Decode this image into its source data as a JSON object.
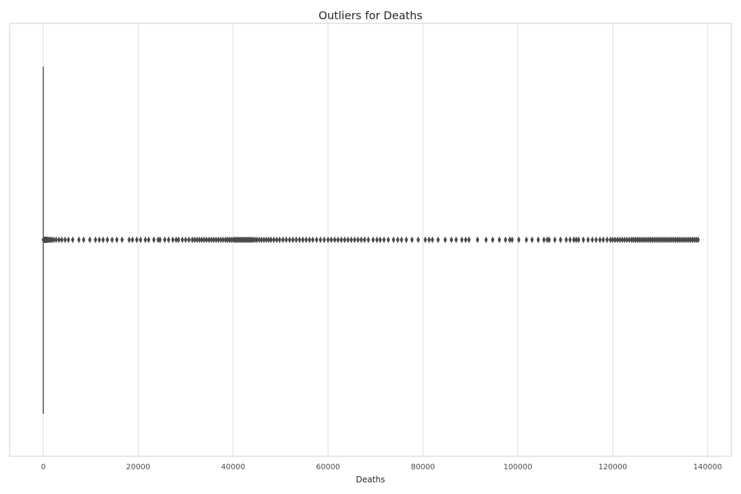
{
  "chart_data": {
    "type": "box",
    "orientation": "horizontal",
    "title": "Outliers for Deaths",
    "xlabel": "Deaths",
    "ylabel": "",
    "xlim": [
      -7100,
      145000
    ],
    "xticks": [
      0,
      20000,
      40000,
      60000,
      80000,
      100000,
      120000,
      140000
    ],
    "xtick_labels": [
      "0",
      "20000",
      "40000",
      "60000",
      "80000",
      "100000",
      "120000",
      "140000"
    ],
    "grid": "vertical",
    "legend": "none",
    "box": {
      "min": 0,
      "q1": 0,
      "median": 0,
      "q3": 0,
      "whisker_high": 0
    },
    "outlier_marker": "diamond",
    "outliers": [
      30,
      60,
      90,
      130,
      180,
      230,
      290,
      360,
      440,
      530,
      630,
      740,
      860,
      990,
      1200,
      1500,
      1800,
      2200,
      2700,
      3300,
      3900,
      4600,
      5300,
      6200,
      7500,
      8500,
      9800,
      11000,
      11800,
      12600,
      13500,
      14500,
      15500,
      16600,
      18100,
      18800,
      19700,
      20500,
      21500,
      22200,
      23300,
      24200,
      24600,
      25600,
      26400,
      27300,
      28000,
      28500,
      29300,
      30000,
      30700,
      31400,
      31900,
      32400,
      32900,
      33400,
      33900,
      34400,
      34900,
      35400,
      35900,
      36400,
      36900,
      37400,
      37900,
      38400,
      38800,
      39200,
      39600,
      40000,
      40300,
      40600,
      40900,
      41200,
      41500,
      41800,
      42100,
      42400,
      42700,
      43000,
      43300,
      43600,
      43900,
      44200,
      44600,
      45000,
      45500,
      46000,
      46500,
      47000,
      47500,
      48000,
      48600,
      49200,
      49800,
      50500,
      51200,
      51900,
      52600,
      53300,
      54000,
      54700,
      55400,
      56100,
      56800,
      57600,
      58400,
      59200,
      60000,
      60700,
      61400,
      62100,
      62800,
      63500,
      64200,
      64900,
      65600,
      66300,
      67000,
      67700,
      68500,
      69500,
      70300,
      71000,
      71800,
      72700,
      73800,
      74700,
      75500,
      76500,
      77700,
      79000,
      80500,
      81300,
      82000,
      83200,
      84700,
      86000,
      87000,
      88200,
      89000,
      89700,
      91500,
      93300,
      94700,
      96100,
      97400,
      98300,
      98800,
      100200,
      101800,
      103000,
      104300,
      105500,
      106200,
      106600,
      107800,
      109000,
      110200,
      111000,
      111800,
      112300,
      112800,
      113800,
      114800,
      115700,
      116500,
      117300,
      118000,
      118800,
      119500,
      120000,
      120500,
      121000,
      121500,
      122000,
      122500,
      123000,
      123500,
      124000,
      124400,
      124800,
      125200,
      125600,
      126000,
      126400,
      126800,
      127200,
      127600,
      128000,
      128400,
      128800,
      129200,
      129600,
      130000,
      130400,
      130800,
      131200,
      131600,
      132000,
      132400,
      132800,
      133200,
      133600,
      134000,
      134400,
      134800,
      135200,
      135600,
      136000,
      136400,
      136800,
      137200,
      137600,
      138000
    ],
    "colors": {
      "box_line": "#4a4a4a",
      "outlier": "#4a4a4a",
      "grid": "#dcdcdc",
      "spine": "#cccccc",
      "background": "#ffffff"
    }
  }
}
